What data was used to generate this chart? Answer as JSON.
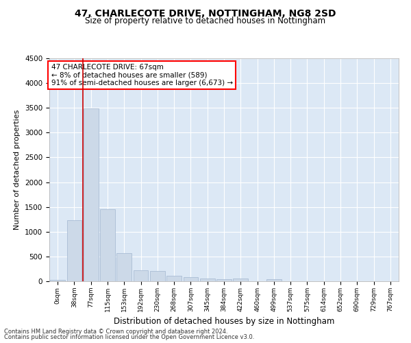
{
  "title1": "47, CHARLECOTE DRIVE, NOTTINGHAM, NG8 2SD",
  "title2": "Size of property relative to detached houses in Nottingham",
  "xlabel": "Distribution of detached houses by size in Nottingham",
  "ylabel": "Number of detached properties",
  "footer1": "Contains HM Land Registry data © Crown copyright and database right 2024.",
  "footer2": "Contains public sector information licensed under the Open Government Licence v3.0.",
  "annotation_line1": "47 CHARLECOTE DRIVE: 67sqm",
  "annotation_line2": "← 8% of detached houses are smaller (589)",
  "annotation_line3": "91% of semi-detached houses are larger (6,673) →",
  "bar_color": "#ccd9e8",
  "bar_edge_color": "#aabdd4",
  "marker_line_color": "#cc0000",
  "background_color": "#dce8f5",
  "categories": [
    "0sqm",
    "38sqm",
    "77sqm",
    "115sqm",
    "153sqm",
    "192sqm",
    "230sqm",
    "268sqm",
    "307sqm",
    "345sqm",
    "384sqm",
    "422sqm",
    "460sqm",
    "499sqm",
    "537sqm",
    "575sqm",
    "614sqm",
    "652sqm",
    "690sqm",
    "729sqm",
    "767sqm"
  ],
  "values": [
    30,
    1230,
    3490,
    1460,
    570,
    215,
    210,
    110,
    80,
    55,
    45,
    50,
    0,
    40,
    0,
    0,
    0,
    0,
    0,
    0,
    0
  ],
  "ylim": [
    0,
    4500
  ],
  "yticks": [
    0,
    500,
    1000,
    1500,
    2000,
    2500,
    3000,
    3500,
    4000,
    4500
  ],
  "marker_bin_index": 1.5,
  "figwidth": 6.0,
  "figheight": 5.0,
  "dpi": 100
}
